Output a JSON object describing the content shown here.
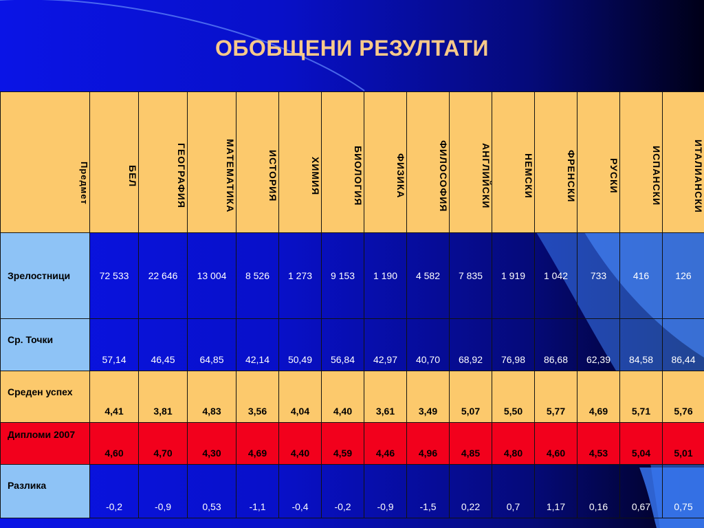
{
  "title": "ОБОБЩЕНИ РЕЗУЛТАТИ",
  "colors": {
    "header_bg": "#fcc96c",
    "row_label_light": "#8ec3f6",
    "red_row": "#f2001c",
    "title_color": "#f7c98a"
  },
  "header": {
    "row_label": "Предмет",
    "subjects": [
      "БЕЛ",
      "ГЕОГРАФИЯ",
      "МАТЕМАТИКА",
      "ИСТОРИЯ",
      "ХИМИЯ",
      "БИОЛОГИЯ",
      "ФИЗИКА",
      "ФИЛОСОФИЯ",
      "АНГЛИЙСКИ",
      "НЕМСКИ",
      "ФРЕНСКИ",
      "РУСКИ",
      "ИСПАНСКИ",
      "ИТАЛИАНСКИ"
    ]
  },
  "rows": [
    {
      "label": "Зрелостници",
      "values": [
        "72 533",
        "22 646",
        "13 004",
        "8 526",
        "1 273",
        "9 153",
        "1 190",
        "4 582",
        "7 835",
        "1 919",
        "1 042",
        "733",
        "416",
        "126"
      ]
    },
    {
      "label": "Ср. Точки",
      "values": [
        "57,14",
        "46,45",
        "64,85",
        "42,14",
        "50,49",
        "56,84",
        "42,97",
        "40,70",
        "68,92",
        "76,98",
        "86,68",
        "62,39",
        "84,58",
        "86,44"
      ]
    },
    {
      "label": "Среден успех",
      "values": [
        "4,41",
        "3,81",
        "4,83",
        "3,56",
        "4,04",
        "4,40",
        "3,61",
        "3,49",
        "5,07",
        "5,50",
        "5,77",
        "4,69",
        "5,71",
        "5,76"
      ]
    },
    {
      "label": "Дипломи 2007",
      "values": [
        "4,60",
        "4,70",
        "4,30",
        "4,69",
        "4,40",
        "4,59",
        "4,46",
        "4,96",
        "4,85",
        "4,80",
        "4,60",
        "4,53",
        "5,04",
        "5,01"
      ]
    },
    {
      "label": "Разлика",
      "values": [
        "-0,2",
        "-0,9",
        "0,53",
        "-1,1",
        "-0,4",
        "-0,2",
        "-0,9",
        "-1,5",
        "0,22",
        "0,7",
        "1,17",
        "0,16",
        "0,67",
        "0,75"
      ]
    }
  ]
}
